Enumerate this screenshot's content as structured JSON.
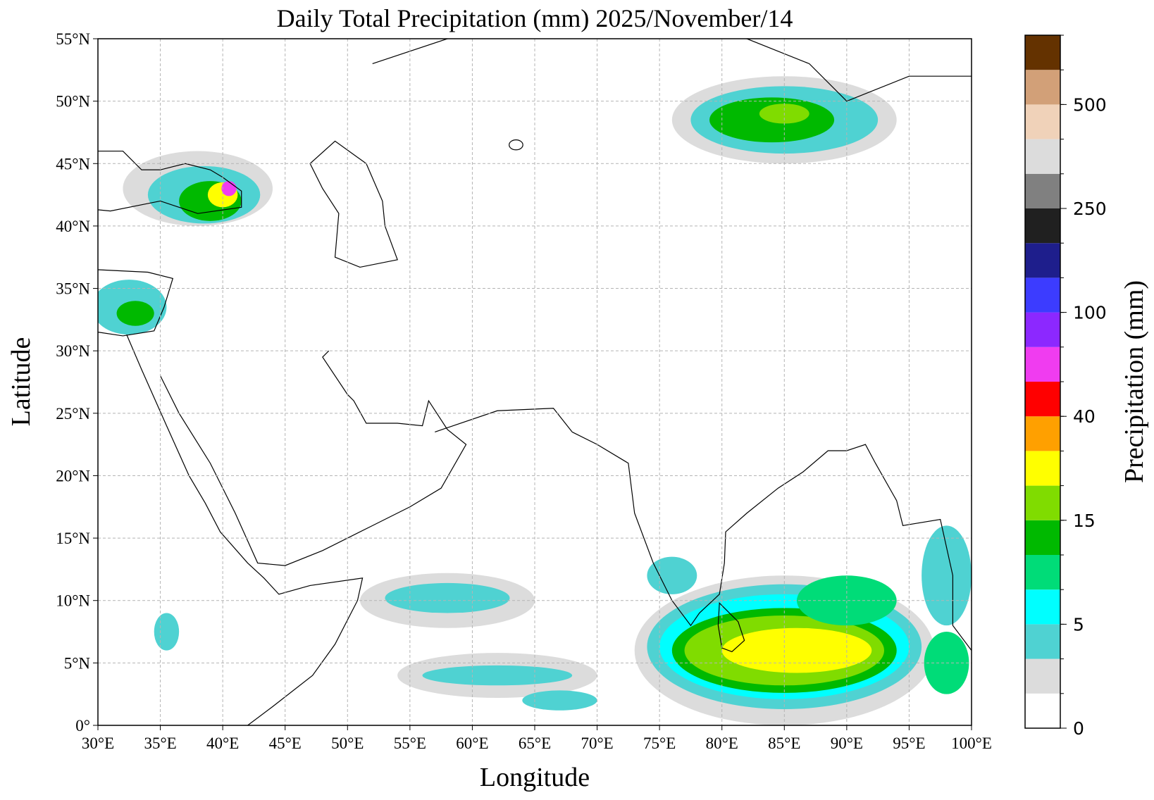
{
  "chart_data": {
    "type": "map",
    "title": "Daily Total Precipitation (mm)  2025/November/14",
    "x_label": "Longitude",
    "y_label": "Latitude",
    "xlim": [
      30,
      100
    ],
    "ylim": [
      0,
      55
    ],
    "xticks": [
      {
        "value": 30,
        "label": "30°E"
      },
      {
        "value": 35,
        "label": "35°E"
      },
      {
        "value": 40,
        "label": "40°E"
      },
      {
        "value": 45,
        "label": "45°E"
      },
      {
        "value": 50,
        "label": "50°E"
      },
      {
        "value": 55,
        "label": "55°E"
      },
      {
        "value": 60,
        "label": "60°E"
      },
      {
        "value": 65,
        "label": "65°E"
      },
      {
        "value": 70,
        "label": "70°E"
      },
      {
        "value": 75,
        "label": "75°E"
      },
      {
        "value": 80,
        "label": "80°E"
      },
      {
        "value": 85,
        "label": "85°E"
      },
      {
        "value": 90,
        "label": "90°E"
      },
      {
        "value": 95,
        "label": "95°E"
      },
      {
        "value": 100,
        "label": "100°E"
      }
    ],
    "yticks": [
      {
        "value": 0,
        "label": "0°"
      },
      {
        "value": 5,
        "label": "5°N"
      },
      {
        "value": 10,
        "label": "10°N"
      },
      {
        "value": 15,
        "label": "15°N"
      },
      {
        "value": 20,
        "label": "20°N"
      },
      {
        "value": 25,
        "label": "25°N"
      },
      {
        "value": 30,
        "label": "30°N"
      },
      {
        "value": 35,
        "label": "35°N"
      },
      {
        "value": 40,
        "label": "40°N"
      },
      {
        "value": 45,
        "label": "45°N"
      },
      {
        "value": 50,
        "label": "50°N"
      },
      {
        "value": 55,
        "label": "55°N"
      }
    ],
    "grid": true,
    "colorbar": {
      "label": "Precipitation (mm)",
      "colors": [
        "#ffffff",
        "#dcdcdc",
        "#4fd2d2",
        "#00ffff",
        "#00dc78",
        "#00b900",
        "#80dc00",
        "#ffff00",
        "#ffa000",
        "#ff0000",
        "#f03cf0",
        "#8c28ff",
        "#3c3cff",
        "#1e1e8c",
        "#202020",
        "#808080",
        "#dcdcdc",
        "#f0d2b9",
        "#d2a078",
        "#643200"
      ],
      "ticks": [
        0,
        5,
        15,
        40,
        100,
        250,
        500
      ]
    }
  }
}
